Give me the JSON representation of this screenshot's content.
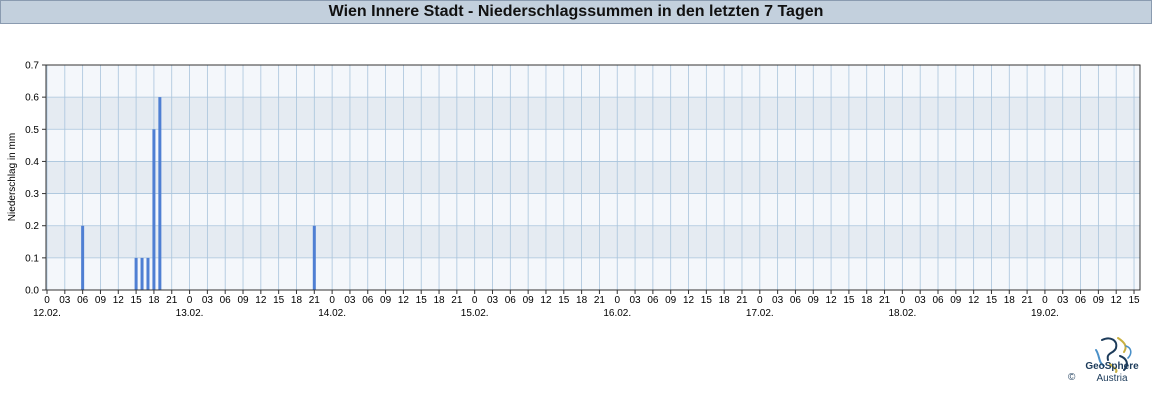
{
  "title": "Wien Innere Stadt - Niederschlagssummen in den letzten 7 Tagen",
  "logo": {
    "name": "GeoSphere",
    "sub": "Austria",
    "copyright": "©"
  },
  "colors": {
    "bar": "#4f7fd3",
    "band_light": "#f4f7fb",
    "band_dark": "#e5ebf2",
    "grid": "#a9c4dc",
    "title_bg": "#c3d0dd"
  },
  "chart_data": {
    "type": "bar",
    "title": "Wien Innere Stadt - Niederschlagssummen in den letzten 7 Tagen",
    "ylabel": "Niederschlag in mm",
    "xlabel": "",
    "ylim": [
      0,
      0.7
    ],
    "yticks": [
      "0.0",
      "0.1",
      "0.2",
      "0.3",
      "0.4",
      "0.5",
      "0.6",
      "0.7"
    ],
    "grid": true,
    "x_hour_ticks": [
      "0",
      "03",
      "06",
      "09",
      "12",
      "15",
      "18",
      "21",
      "0",
      "03",
      "06",
      "09",
      "12",
      "15",
      "18",
      "21",
      "0",
      "03",
      "06",
      "09",
      "12",
      "15",
      "18",
      "21",
      "0",
      "03",
      "06",
      "09",
      "12",
      "15",
      "18",
      "21",
      "0",
      "03",
      "06",
      "09",
      "12",
      "15",
      "18",
      "21",
      "0",
      "03",
      "06",
      "09",
      "12",
      "15",
      "18",
      "21",
      "0",
      "03",
      "06",
      "09",
      "12",
      "15",
      "18",
      "21",
      "0",
      "03",
      "06",
      "09",
      "12",
      "15"
    ],
    "x_day_labels": [
      "12.02.",
      "13.02.",
      "14.02.",
      "15.02.",
      "16.02.",
      "17.02.",
      "18.02.",
      "19.02."
    ],
    "hours_span": [
      0,
      183
    ],
    "bars": [
      {
        "hour": 6,
        "value": 0.2
      },
      {
        "hour": 15,
        "value": 0.1
      },
      {
        "hour": 16,
        "value": 0.1
      },
      {
        "hour": 17,
        "value": 0.1
      },
      {
        "hour": 18,
        "value": 0.5
      },
      {
        "hour": 19,
        "value": 0.6
      },
      {
        "hour": 45,
        "value": 0.2
      }
    ]
  }
}
